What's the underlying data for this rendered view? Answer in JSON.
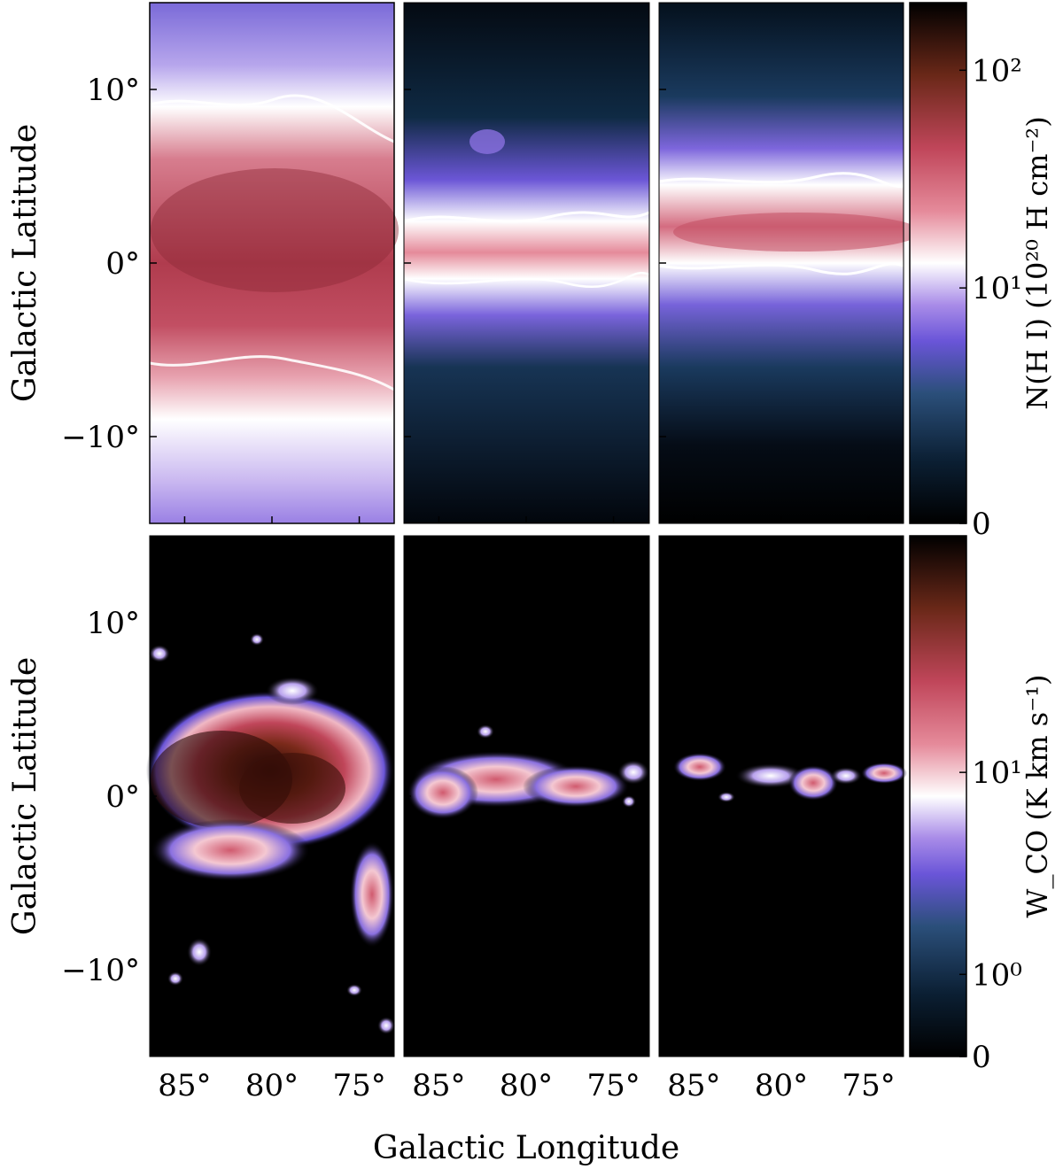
{
  "figure": {
    "xlabel": "Galactic Longitude",
    "ylabel_top": "Galactic Latitude",
    "ylabel_bottom": "Galactic Latitude"
  },
  "colormap": [
    "#000000",
    "#0b1f33",
    "#2b4f7a",
    "#6a55d8",
    "#a98ce8",
    "#ffffff",
    "#e58a9a",
    "#c0465a",
    "#6a2818",
    "#000000"
  ],
  "chart_data": [
    {
      "type": "heatmap",
      "row": "top",
      "panels": 3,
      "xlim": [
        87,
        73
      ],
      "ylim": [
        -15,
        15
      ],
      "xticks": [
        85,
        80,
        75
      ],
      "yticks": [
        10,
        0,
        -10
      ],
      "ytick_labels": [
        "10°",
        "0°",
        "−10°"
      ],
      "xtick_labels": [],
      "colorbar": {
        "label": "N(H I) (10²⁰ H cm⁻²)",
        "ticks": [
          "10²",
          "10¹",
          "0"
        ],
        "ticks_at": [
          100,
          10,
          0
        ],
        "scale": "log",
        "range": [
          0,
          200
        ]
      }
    },
    {
      "type": "heatmap",
      "row": "bottom",
      "panels": 3,
      "xlim": [
        87,
        73
      ],
      "ylim": [
        -15,
        15
      ],
      "xticks": [
        85,
        80,
        75
      ],
      "yticks": [
        10,
        0,
        -10
      ],
      "ytick_labels": [
        "10°",
        "0°",
        "−10°"
      ],
      "xtick_labels": [
        "85°",
        "80°",
        "75°"
      ],
      "colorbar": {
        "label": "W_CO (K km s⁻¹)",
        "ticks": [
          "10¹",
          "10⁰",
          "0"
        ],
        "ticks_at": [
          10,
          1,
          0
        ],
        "scale": "log",
        "range": [
          0,
          80
        ]
      }
    }
  ]
}
